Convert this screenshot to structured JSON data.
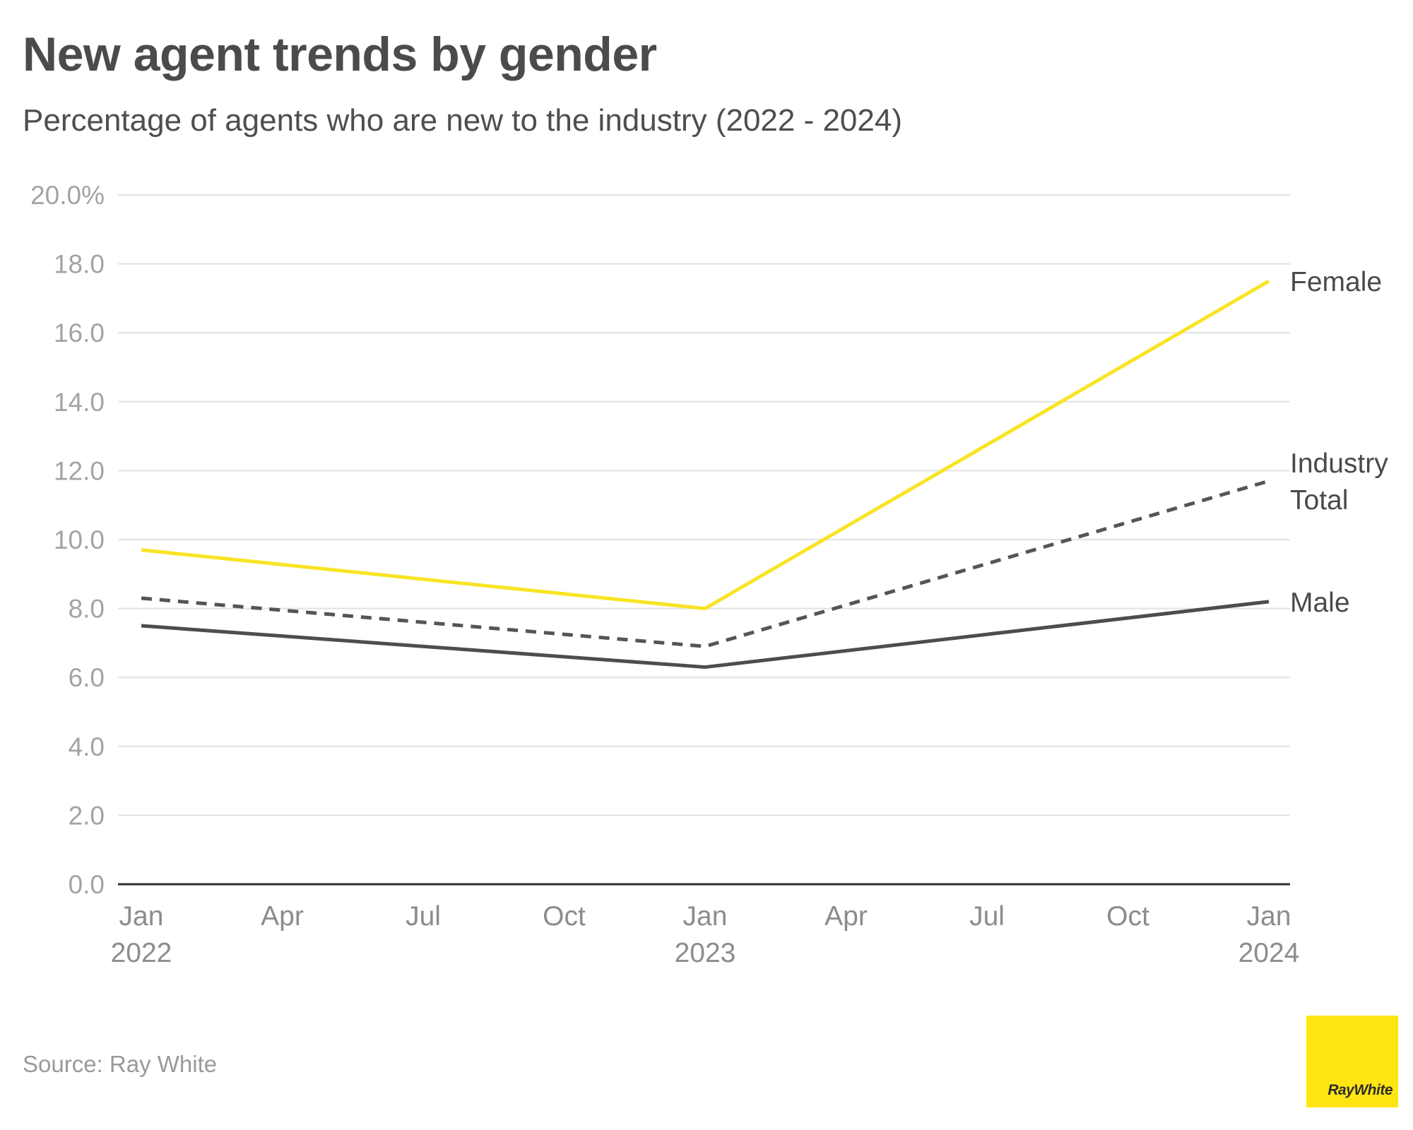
{
  "header": {
    "title": "New agent trends by gender",
    "subtitle": "Percentage of agents who are new to the industry (2022 - 2024)"
  },
  "chart_data": {
    "type": "line",
    "title": "New agent trends by gender",
    "subtitle": "Percentage of agents who are new to the industry (2022 - 2024)",
    "x_domain": [
      "2022-01",
      "2024-01"
    ],
    "x_ticks": [
      {
        "date": "2022-01",
        "label": "Jan",
        "year": "2022"
      },
      {
        "date": "2022-04",
        "label": "Apr",
        "year": ""
      },
      {
        "date": "2022-07",
        "label": "Jul",
        "year": ""
      },
      {
        "date": "2022-10",
        "label": "Oct",
        "year": ""
      },
      {
        "date": "2023-01",
        "label": "Jan",
        "year": "2023"
      },
      {
        "date": "2023-04",
        "label": "Apr",
        "year": ""
      },
      {
        "date": "2023-07",
        "label": "Jul",
        "year": ""
      },
      {
        "date": "2023-10",
        "label": "Oct",
        "year": ""
      },
      {
        "date": "2024-01",
        "label": "Jan",
        "year": "2024"
      }
    ],
    "ylim": [
      0,
      20
    ],
    "y_ticks": [
      {
        "value": 0,
        "label": "0.0"
      },
      {
        "value": 2,
        "label": "2.0"
      },
      {
        "value": 4,
        "label": "4.0"
      },
      {
        "value": 6,
        "label": "6.0"
      },
      {
        "value": 8,
        "label": "8.0"
      },
      {
        "value": 10,
        "label": "10.0"
      },
      {
        "value": 12,
        "label": "12.0"
      },
      {
        "value": 14,
        "label": "14.0"
      },
      {
        "value": 16,
        "label": "16.0"
      },
      {
        "value": 18,
        "label": "18.0"
      },
      {
        "value": 20,
        "label": "20.0%"
      }
    ],
    "grid": true,
    "series": [
      {
        "name": "Female",
        "label_lines": [
          "Female"
        ],
        "color": "#f8e425",
        "dashed": false,
        "points": [
          {
            "x": "2022-01",
            "y": 9.7
          },
          {
            "x": "2023-01",
            "y": 8.0
          },
          {
            "x": "2024-01",
            "y": 17.5
          }
        ]
      },
      {
        "name": "Industry Total",
        "label_lines": [
          "Industry",
          "Total"
        ],
        "color": "#555555",
        "dashed": true,
        "points": [
          {
            "x": "2022-01",
            "y": 8.3
          },
          {
            "x": "2023-01",
            "y": 6.9
          },
          {
            "x": "2024-01",
            "y": 11.7
          }
        ]
      },
      {
        "name": "Male",
        "label_lines": [
          "Male"
        ],
        "color": "#4d4d4d",
        "dashed": false,
        "points": [
          {
            "x": "2022-01",
            "y": 7.5
          },
          {
            "x": "2023-01",
            "y": 6.3
          },
          {
            "x": "2024-01",
            "y": 8.2
          }
        ]
      }
    ]
  },
  "footer": {
    "source": "Source: Ray White",
    "logo_text": "RayWhite"
  }
}
